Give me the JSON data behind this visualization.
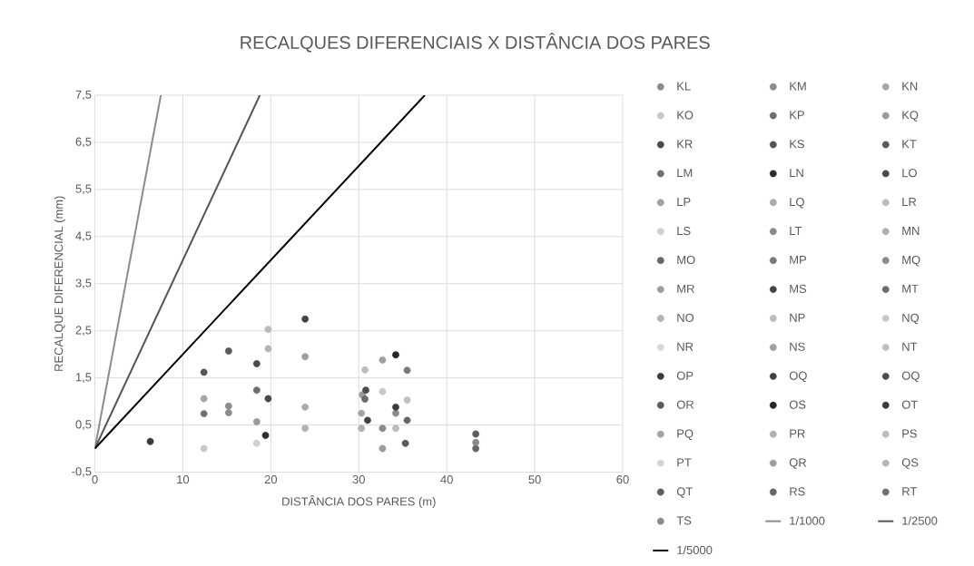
{
  "chart_data": {
    "type": "scatter",
    "title": "RECALQUES DIFERENCIAIS X DISTÂNCIA DOS PARES",
    "xlabel": "DISTÂNCIA DOS PARES (m)",
    "ylabel": "RECALQUE DIFERENCIAL (mm)",
    "xlim": [
      0,
      60
    ],
    "ylim": [
      -0.5,
      7.5
    ],
    "xticks": [
      0,
      10,
      20,
      30,
      40,
      50,
      60
    ],
    "yticks": [
      {
        "value": -0.5,
        "label": "-0,5"
      },
      {
        "value": 0.5,
        "label": "0,5"
      },
      {
        "value": 1.5,
        "label": "1,5"
      },
      {
        "value": 2.5,
        "label": "2,5"
      },
      {
        "value": 3.5,
        "label": "3,5"
      },
      {
        "value": 4.5,
        "label": "4,5"
      },
      {
        "value": 5.5,
        "label": "5,5"
      },
      {
        "value": 6.5,
        "label": "6,5"
      },
      {
        "value": 7.5,
        "label": "7,5"
      }
    ],
    "grid": true,
    "legend": "right",
    "series": [
      {
        "name": "KL",
        "marker": "circle",
        "color": "#8c8c8c",
        "x": [
          15.2
        ],
        "values": [
          0.9
        ]
      },
      {
        "name": "KM",
        "marker": "circle",
        "color": "#8c8c8c",
        "x": [
          15.2
        ],
        "values": [
          0.76
        ]
      },
      {
        "name": "KN",
        "marker": "circle",
        "color": "#a6a6a6",
        "x": [
          12.4
        ],
        "values": [
          1.06
        ]
      },
      {
        "name": "KO",
        "marker": "circle",
        "color": "#c8c8c8",
        "x": [
          12.4
        ],
        "values": [
          0.0
        ]
      },
      {
        "name": "KP",
        "marker": "circle",
        "color": "#6e6e6e",
        "x": [
          12.4
        ],
        "values": [
          0.74
        ]
      },
      {
        "name": "KQ",
        "marker": "circle",
        "color": "#9a9a9a",
        "x": [
          18.4
        ],
        "values": [
          0.57
        ]
      },
      {
        "name": "KR",
        "marker": "circle",
        "color": "#4a4a4a",
        "x": [
          18.4
        ],
        "values": [
          1.8
        ]
      },
      {
        "name": "KS",
        "marker": "circle",
        "color": "#555555",
        "x": [
          12.4
        ],
        "values": [
          1.62
        ]
      },
      {
        "name": "KT",
        "marker": "circle",
        "color": "#5a5a5a",
        "x": [
          15.2
        ],
        "values": [
          2.07
        ]
      },
      {
        "name": "LM",
        "marker": "circle",
        "color": "#707070",
        "x": [
          18.4
        ],
        "values": [
          1.24
        ]
      },
      {
        "name": "LN",
        "marker": "circle",
        "color": "#2e2e2e",
        "x": [
          19.4
        ],
        "values": [
          0.28
        ]
      },
      {
        "name": "LO",
        "marker": "circle",
        "color": "#4a4a4a",
        "x": [
          19.7
        ],
        "values": [
          1.06
        ]
      },
      {
        "name": "LP",
        "marker": "circle",
        "color": "#a0a0a0",
        "x": [
          23.9
        ],
        "values": [
          1.95
        ]
      },
      {
        "name": "LQ",
        "marker": "circle",
        "color": "#aaaaaa",
        "x": [
          23.9
        ],
        "values": [
          0.88
        ]
      },
      {
        "name": "LR",
        "marker": "circle",
        "color": "#bbbbbb",
        "x": [
          19.7
        ],
        "values": [
          2.53
        ]
      },
      {
        "name": "LS",
        "marker": "circle",
        "color": "#d0d0d0",
        "x": [
          18.4
        ],
        "values": [
          0.11
        ]
      },
      {
        "name": "LT",
        "marker": "circle",
        "color": "#8a8a8a",
        "x": [
          32.7
        ],
        "values": [
          0.43
        ]
      },
      {
        "name": "MN",
        "marker": "circle",
        "color": "#b0b0b0",
        "x": [
          23.9
        ],
        "values": [
          0.43
        ]
      },
      {
        "name": "MO",
        "marker": "circle",
        "color": "#666666",
        "x": [
          35.5
        ],
        "values": [
          0.6
        ]
      },
      {
        "name": "MP",
        "marker": "circle",
        "color": "#7a7a7a",
        "x": [
          35.5
        ],
        "values": [
          1.66
        ]
      },
      {
        "name": "MQ",
        "marker": "circle",
        "color": "#8a8a8a",
        "x": [
          34.2
        ],
        "values": [
          0.75
        ]
      },
      {
        "name": "MR",
        "marker": "circle",
        "color": "#9c9c9c",
        "x": [
          30.4
        ],
        "values": [
          1.14
        ]
      },
      {
        "name": "MS",
        "marker": "circle",
        "color": "#444444",
        "x": [
          23.9
        ],
        "values": [
          2.75
        ]
      },
      {
        "name": "MT",
        "marker": "circle",
        "color": "#6a6a6a",
        "x": [
          30.7
        ],
        "values": [
          1.05
        ]
      },
      {
        "name": "NO",
        "marker": "circle",
        "color": "#b4b4b4",
        "x": [
          19.7
        ],
        "values": [
          2.12
        ]
      },
      {
        "name": "NP",
        "marker": "circle",
        "color": "#bcbcbc",
        "x": [
          30.7
        ],
        "values": [
          1.67
        ]
      },
      {
        "name": "NQ",
        "marker": "circle",
        "color": "#c8c8c8",
        "x": [
          32.7
        ],
        "values": [
          1.21
        ]
      },
      {
        "name": "NR",
        "marker": "circle",
        "color": "#d8d8d8",
        "x": [
          null
        ],
        "values": [
          null
        ]
      },
      {
        "name": "NS",
        "marker": "circle",
        "color": "#a0a0a0",
        "x": [
          32.7
        ],
        "values": [
          1.88
        ]
      },
      {
        "name": "NT",
        "marker": "circle",
        "color": "#c0c0c0",
        "x": [
          35.5
        ],
        "values": [
          1.03
        ]
      },
      {
        "name": "OP",
        "marker": "circle",
        "color": "#3a3a3a",
        "x": [
          6.3
        ],
        "values": [
          0.15
        ]
      },
      {
        "name": "OQ",
        "marker": "circle",
        "color": "#404040",
        "x": [
          31.0
        ],
        "values": [
          0.6
        ]
      },
      {
        "name": "OQ",
        "marker": "circle",
        "color": "#4a4a4a",
        "x": [
          30.8
        ],
        "values": [
          1.24
        ]
      },
      {
        "name": "OR",
        "marker": "circle",
        "color": "#5a5a5a",
        "x": [
          35.3
        ],
        "values": [
          0.11
        ]
      },
      {
        "name": "OS",
        "marker": "circle",
        "color": "#262626",
        "x": [
          34.2
        ],
        "values": [
          1.99
        ]
      },
      {
        "name": "OT",
        "marker": "circle",
        "color": "#3a3a3a",
        "x": [
          34.2
        ],
        "values": [
          0.88
        ]
      },
      {
        "name": "PQ",
        "marker": "circle",
        "color": "#a4a4a4",
        "x": [
          30.3
        ],
        "values": [
          0.75
        ]
      },
      {
        "name": "PR",
        "marker": "circle",
        "color": "#b0b0b0",
        "x": [
          30.3
        ],
        "values": [
          0.43
        ]
      },
      {
        "name": "PS",
        "marker": "circle",
        "color": "#bcbcbc",
        "x": [
          34.2
        ],
        "values": [
          0.43
        ]
      },
      {
        "name": "PT",
        "marker": "circle",
        "color": "#d4d4d4",
        "x": [
          null
        ],
        "values": [
          null
        ]
      },
      {
        "name": "QR",
        "marker": "circle",
        "color": "#9c9c9c",
        "x": [
          32.7
        ],
        "values": [
          0.0
        ]
      },
      {
        "name": "QS",
        "marker": "circle",
        "color": "#b4b4b4",
        "x": [
          null
        ],
        "values": [
          null
        ]
      },
      {
        "name": "QT",
        "marker": "circle",
        "color": "#5e5e5e",
        "x": [
          43.3
        ],
        "values": [
          0.31
        ]
      },
      {
        "name": "RS",
        "marker": "circle",
        "color": "#666666",
        "x": [
          43.3
        ],
        "values": [
          0.0
        ]
      },
      {
        "name": "RT",
        "marker": "circle",
        "color": "#707070",
        "x": [
          null
        ],
        "values": [
          null
        ]
      },
      {
        "name": "TS",
        "marker": "circle",
        "color": "#8a8a8a",
        "x": [
          43.3
        ],
        "values": [
          0.13
        ]
      },
      {
        "name": "1/1000",
        "type": "line",
        "marker": "none",
        "color": "#8c8c8c",
        "x": [
          0,
          7.5
        ],
        "values": [
          0,
          7.5
        ]
      },
      {
        "name": "1/2500",
        "type": "line",
        "marker": "none",
        "color": "#555555",
        "x": [
          0,
          18.75
        ],
        "values": [
          0,
          7.5
        ]
      },
      {
        "name": "1/5000",
        "type": "line",
        "marker": "none",
        "color": "#000000",
        "x": [
          0,
          37.5
        ],
        "values": [
          0,
          7.5
        ]
      }
    ]
  }
}
